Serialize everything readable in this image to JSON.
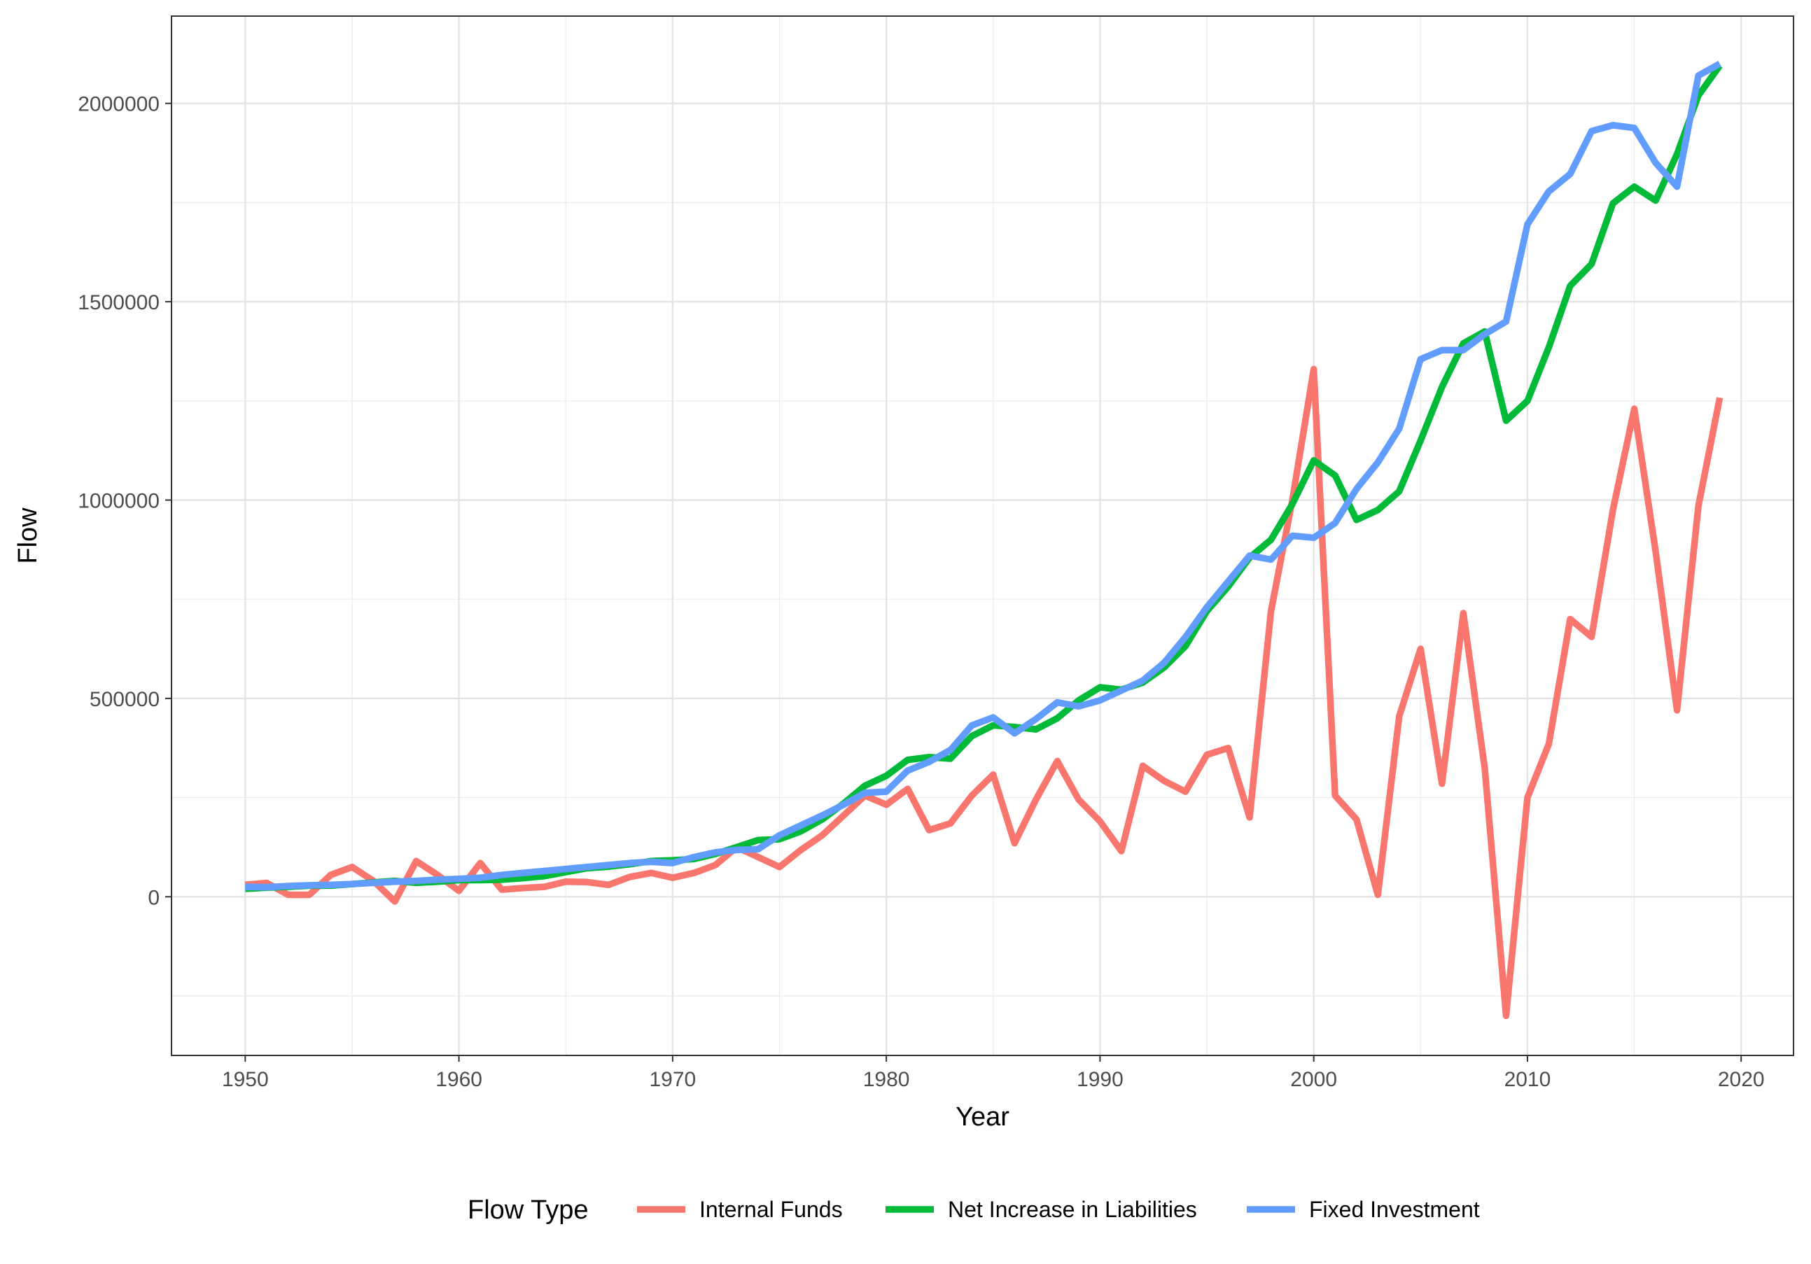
{
  "chart_data": {
    "type": "line",
    "xlabel": "Year",
    "ylabel": "Flow",
    "xlim": [
      1946.55,
      2022.45
    ],
    "ylim": [
      -400000,
      2220000
    ],
    "x_ticks": [
      1950,
      1960,
      1970,
      1980,
      1990,
      2000,
      2010,
      2020
    ],
    "y_ticks": [
      0,
      500000,
      1000000,
      1500000,
      2000000
    ],
    "x_tick_labels": [
      "1950",
      "1960",
      "1970",
      "1980",
      "1990",
      "2000",
      "2010",
      "2020"
    ],
    "y_tick_labels": [
      "0",
      "500000",
      "1000000",
      "1500000",
      "2000000"
    ],
    "grid": true,
    "legend": {
      "title": "Flow Type",
      "position": "bottom"
    },
    "x": [
      1950,
      1951,
      1952,
      1953,
      1954,
      1955,
      1956,
      1957,
      1958,
      1959,
      1960,
      1961,
      1962,
      1963,
      1964,
      1965,
      1966,
      1967,
      1968,
      1969,
      1970,
      1971,
      1972,
      1973,
      1974,
      1975,
      1976,
      1977,
      1978,
      1979,
      1980,
      1981,
      1982,
      1983,
      1984,
      1985,
      1986,
      1987,
      1988,
      1989,
      1990,
      1991,
      1992,
      1993,
      1994,
      1995,
      1996,
      1997,
      1998,
      1999,
      2000,
      2001,
      2002,
      2003,
      2004,
      2005,
      2006,
      2007,
      2008,
      2009,
      2010,
      2011,
      2012,
      2013,
      2014,
      2015,
      2016,
      2017,
      2018,
      2019
    ],
    "series": [
      {
        "name": "Internal Funds",
        "color": "#F8766D",
        "values": [
          30000,
          35000,
          5000,
          5000,
          55000,
          75000,
          40000,
          -12000,
          90000,
          55000,
          15000,
          85000,
          18000,
          22000,
          25000,
          38000,
          37000,
          30000,
          50000,
          60000,
          48000,
          60000,
          80000,
          125000,
          100000,
          75000,
          118000,
          155000,
          205000,
          255000,
          232000,
          272000,
          168000,
          185000,
          255000,
          308000,
          135000,
          245000,
          342000,
          245000,
          190000,
          115000,
          330000,
          292000,
          265000,
          358000,
          375000,
          200000,
          720000,
          1000000,
          1330000,
          255000,
          195000,
          5000,
          455000,
          625000,
          285000,
          715000,
          325000,
          -300000,
          250000,
          385000,
          700000,
          655000,
          975000,
          1230000,
          870000,
          470000,
          985000,
          1258000
        ]
      },
      {
        "name": "Net Increase in Liabilities",
        "color": "#00BA38",
        "values": [
          20000,
          23000,
          25000,
          28000,
          28000,
          32000,
          36000,
          40000,
          35000,
          38000,
          42000,
          42000,
          43000,
          47000,
          52000,
          62000,
          72000,
          76000,
          82000,
          90000,
          92000,
          95000,
          108000,
          125000,
          143000,
          145000,
          165000,
          195000,
          235000,
          280000,
          305000,
          345000,
          352000,
          348000,
          405000,
          432000,
          428000,
          422000,
          450000,
          495000,
          528000,
          522000,
          540000,
          578000,
          632000,
          720000,
          782000,
          855000,
          900000,
          990000,
          1100000,
          1062000,
          950000,
          975000,
          1022000,
          1150000,
          1285000,
          1395000,
          1425000,
          1200000,
          1250000,
          1385000,
          1540000,
          1595000,
          1748000,
          1790000,
          1755000,
          1872000,
          2020000,
          2095000
        ]
      },
      {
        "name": "Fixed Investment",
        "color": "#619CFF",
        "values": [
          25000,
          24000,
          27000,
          29000,
          30000,
          32000,
          35000,
          38000,
          40000,
          43000,
          45000,
          48000,
          55000,
          60000,
          65000,
          70000,
          75000,
          80000,
          85000,
          88000,
          85000,
          100000,
          112000,
          118000,
          120000,
          155000,
          180000,
          205000,
          232000,
          262000,
          265000,
          318000,
          340000,
          370000,
          432000,
          452000,
          412000,
          448000,
          490000,
          480000,
          495000,
          520000,
          545000,
          590000,
          655000,
          730000,
          795000,
          860000,
          850000,
          910000,
          905000,
          942000,
          1028000,
          1095000,
          1180000,
          1355000,
          1378000,
          1378000,
          1418000,
          1450000,
          1695000,
          1778000,
          1822000,
          1930000,
          1945000,
          1938000,
          1850000,
          1790000,
          2070000,
          2100000
        ]
      }
    ]
  }
}
